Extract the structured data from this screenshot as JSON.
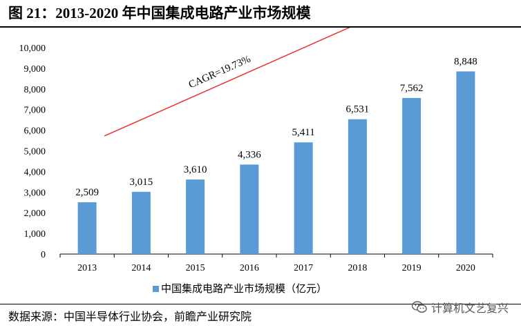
{
  "figure_title": "图 21：2013-2020 年中国集成电路产业市场规模",
  "source": "数据来源：中国半导体行业协会，前瞻产业研究院",
  "watermark": "计算机文艺复兴",
  "colors": {
    "bar": "#5b9bd5",
    "arrow": "#e8312a",
    "axis": "#000000"
  },
  "chart_data": {
    "type": "bar",
    "title": "",
    "xlabel": "",
    "ylabel": "",
    "categories": [
      "2013",
      "2014",
      "2015",
      "2016",
      "2017",
      "2018",
      "2019",
      "2020"
    ],
    "series": [
      {
        "name": "中国集成电路产业市场规模（亿元）",
        "values": [
          2509,
          3015,
          3610,
          4336,
          5411,
          6531,
          7562,
          8848
        ]
      }
    ],
    "value_labels": [
      "2,509",
      "3,015",
      "3,610",
      "4,336",
      "5,411",
      "6,531",
      "7,562",
      "8,848"
    ],
    "ylim": [
      0,
      10000
    ],
    "yticks": [
      0,
      1000,
      2000,
      3000,
      4000,
      5000,
      6000,
      7000,
      8000,
      9000,
      10000
    ],
    "ytick_labels": [
      "0",
      "1,000",
      "2,000",
      "3,000",
      "4,000",
      "5,000",
      "6,000",
      "7,000",
      "8,000",
      "9,000",
      "10,000"
    ],
    "grid": false,
    "legend_position": "bottom-center",
    "annotation": {
      "text": "CAGR=19.73%",
      "from_category": "2013",
      "to_category": "2019"
    }
  }
}
